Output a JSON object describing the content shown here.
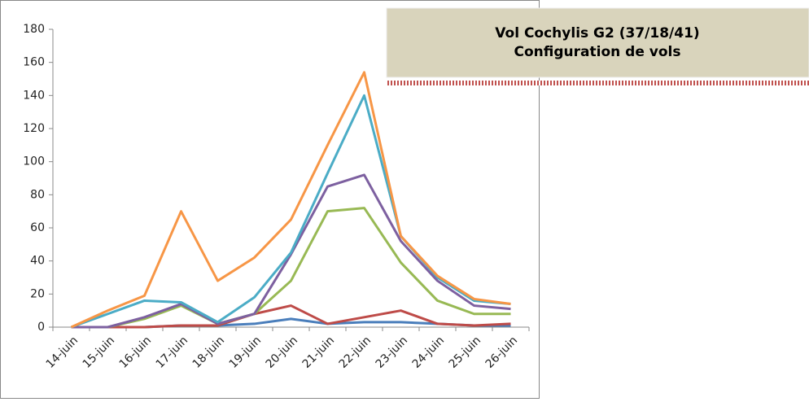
{
  "chart_data": {
    "type": "line",
    "title": "Vol Cochylis G2 (37/18/41)",
    "subtitle": "Configuration de vols",
    "categories": [
      "14-juin",
      "15-juin",
      "16-juin",
      "17-juin",
      "18-juin",
      "19-juin",
      "20-juin",
      "21-juin",
      "22-juin",
      "23-juin",
      "24-juin",
      "25-juin",
      "26-juin"
    ],
    "series": [
      {
        "color": "#4a7ebb",
        "values": [
          0,
          0,
          0,
          1,
          1,
          2,
          5,
          2,
          3,
          3,
          2,
          1,
          1
        ]
      },
      {
        "color": "#be4b48",
        "values": [
          0,
          0,
          0,
          1,
          1,
          8,
          13,
          2,
          6,
          10,
          2,
          1,
          2
        ]
      },
      {
        "color": "#98b954",
        "values": [
          0,
          0,
          5,
          13,
          2,
          8,
          28,
          70,
          72,
          39,
          16,
          8,
          8
        ]
      },
      {
        "color": "#7d60a0",
        "values": [
          0,
          0,
          6,
          14,
          2,
          8,
          44,
          85,
          92,
          52,
          28,
          13,
          11
        ]
      },
      {
        "color": "#4bacc6",
        "values": [
          0,
          8,
          16,
          15,
          3,
          18,
          45,
          93,
          140,
          55,
          30,
          16,
          14
        ]
      },
      {
        "color": "#f79646",
        "values": [
          0,
          10,
          19,
          70,
          28,
          42,
          65,
          110,
          154,
          55,
          31,
          17,
          14
        ]
      }
    ],
    "ylim": [
      0,
      180
    ],
    "yticks": [
      0,
      20,
      40,
      60,
      80,
      100,
      120,
      140,
      160,
      180
    ],
    "grid": false
  }
}
